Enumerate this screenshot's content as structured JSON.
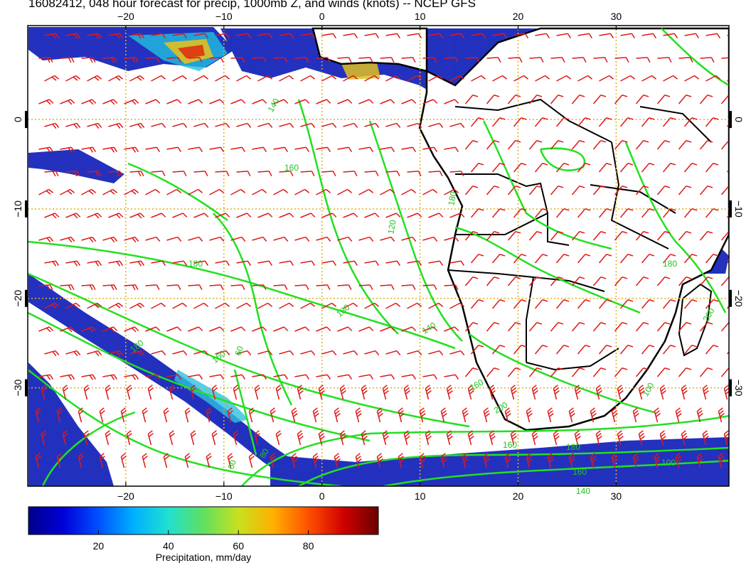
{
  "title": "16082412, 048 hour forecast for precip, 1000mb Z, and winds (knots) -- NCEP GFS",
  "map": {
    "lon_range": [
      -30,
      41.5
    ],
    "lat_range": [
      -41,
      10.5
    ],
    "lon_ticks": [
      -20,
      -10,
      0,
      10,
      20,
      30
    ],
    "lat_ticks": [
      0,
      -10,
      -20,
      -30
    ],
    "lon_tick_labels": [
      "−20",
      "−10",
      "0",
      "10",
      "20",
      "30"
    ],
    "lat_tick_labels": [
      "0",
      "−10",
      "−20",
      "−30"
    ],
    "grid": "dotted",
    "grid_color": "#e0b020",
    "contour_color": "#22e01f",
    "barb_color": "#e01818",
    "coast_color": "#000000",
    "contour_labels": [
      "140",
      "180",
      "160",
      "120",
      "180",
      "160",
      "180",
      "180",
      "60",
      "140",
      "160",
      "200",
      "160",
      "180",
      "160",
      "140",
      "100",
      "180",
      "200",
      "100",
      "60",
      "80"
    ]
  },
  "colorbar": {
    "label": "Precipitation, mm/day",
    "tick_labels": [
      "20",
      "40",
      "60",
      "80"
    ],
    "tick_values": [
      20,
      40,
      60,
      80
    ],
    "range": [
      0,
      100
    ],
    "colors": [
      "#00008a",
      "#0000d8",
      "#0050ff",
      "#00b0ff",
      "#20e0d0",
      "#60e060",
      "#c8e020",
      "#ffb000",
      "#ff5000",
      "#d00000",
      "#6a0000"
    ]
  }
}
